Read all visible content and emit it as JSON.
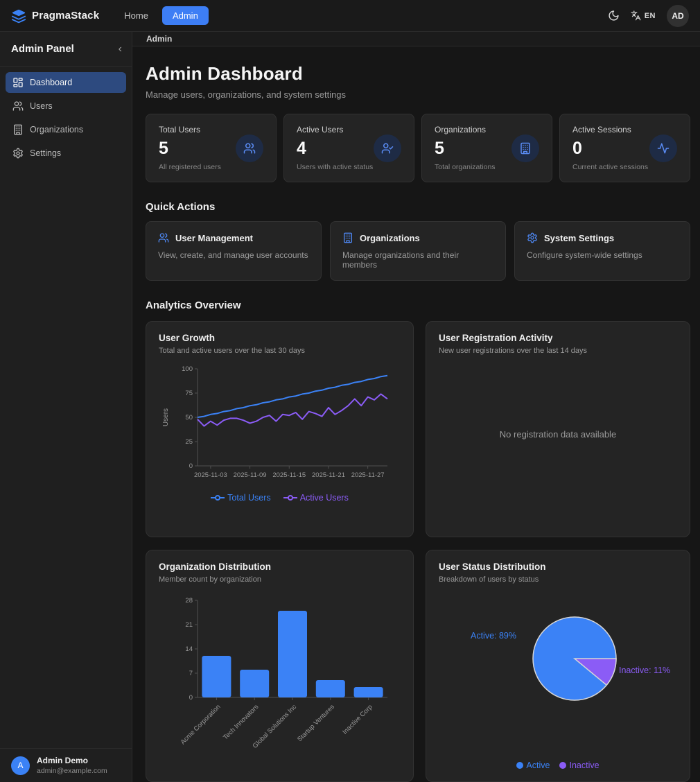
{
  "navbar": {
    "brand": "PragmaStack",
    "links": [
      {
        "label": "Home",
        "active": false
      },
      {
        "label": "Admin",
        "active": true
      }
    ],
    "language": "EN",
    "avatar": "AD"
  },
  "sidebar": {
    "title": "Admin Panel",
    "collapse_icon": "‹",
    "items": [
      {
        "label": "Dashboard",
        "icon": "dashboard-icon",
        "active": true
      },
      {
        "label": "Users",
        "icon": "users-icon",
        "active": false
      },
      {
        "label": "Organizations",
        "icon": "building-icon",
        "active": false
      },
      {
        "label": "Settings",
        "icon": "gear-icon",
        "active": false
      }
    ],
    "user": {
      "initial": "A",
      "name": "Admin Demo",
      "email": "admin@example.com"
    }
  },
  "breadcrumb": "Admin",
  "page": {
    "title": "Admin Dashboard",
    "subtitle": "Manage users, organizations, and system settings"
  },
  "stats": [
    {
      "label": "Total Users",
      "value": "5",
      "description": "All registered users",
      "icon": "users-icon"
    },
    {
      "label": "Active Users",
      "value": "4",
      "description": "Users with active status",
      "icon": "user-check-icon"
    },
    {
      "label": "Organizations",
      "value": "5",
      "description": "Total organizations",
      "icon": "building-icon"
    },
    {
      "label": "Active Sessions",
      "value": "0",
      "description": "Current active sessions",
      "icon": "activity-icon"
    }
  ],
  "quick_actions": {
    "heading": "Quick Actions",
    "items": [
      {
        "title": "User Management",
        "description": "View, create, and manage user accounts",
        "icon": "users-icon"
      },
      {
        "title": "Organizations",
        "description": "Manage organizations and their members",
        "icon": "building-icon"
      },
      {
        "title": "System Settings",
        "description": "Configure system-wide settings",
        "icon": "gear-icon"
      }
    ]
  },
  "analytics": {
    "heading": "Analytics Overview",
    "registration_card": {
      "title": "User Registration Activity",
      "subtitle": "New user registrations over the last 14 days",
      "no_data_message": "No registration data available"
    }
  },
  "colors": {
    "accent_blue": "#3b82f6",
    "accent_purple": "#8b5cf6",
    "axis_text": "#9b9b9b",
    "axis_line": "#4f4f4f",
    "pie_stroke": "#d6d6d6"
  },
  "chart_data": [
    {
      "type": "line",
      "title": "User Growth",
      "subtitle": "Total and active users over the last 30 days",
      "ylabel": "Users",
      "ylim": [
        0,
        100
      ],
      "yticks": [
        0,
        25,
        50,
        75,
        100
      ],
      "xtick_labels": [
        "2025-11-03",
        "2025-11-09",
        "2025-11-15",
        "2025-11-21",
        "2025-11-27"
      ],
      "xtick_indices": [
        2,
        8,
        14,
        20,
        26
      ],
      "legend_position": "bottom",
      "grid": false,
      "series": [
        {
          "name": "Total Users",
          "color": "#3b82f6",
          "values": [
            50,
            51,
            53,
            54,
            56,
            57,
            59,
            60,
            62,
            63,
            65,
            66,
            68,
            69,
            71,
            72,
            74,
            75,
            77,
            78,
            80,
            81,
            83,
            84,
            86,
            87,
            89,
            90,
            92,
            93
          ]
        },
        {
          "name": "Active Users",
          "color": "#8b5cf6",
          "values": [
            48,
            41,
            46,
            42,
            47,
            49,
            49,
            47,
            44,
            46,
            50,
            52,
            46,
            53,
            52,
            55,
            48,
            56,
            54,
            51,
            60,
            53,
            57,
            62,
            69,
            62,
            71,
            68,
            74,
            69
          ]
        }
      ]
    },
    {
      "type": "bar",
      "title": "Organization Distribution",
      "subtitle": "Member count by organization",
      "categories": [
        "Acme Corporation",
        "Tech Innovators",
        "Global Solutions Inc",
        "Startup Ventures",
        "Inactive Corp"
      ],
      "values": [
        12,
        8,
        25,
        5,
        3
      ],
      "ylim": [
        0,
        28
      ],
      "yticks": [
        0,
        7,
        14,
        21,
        28
      ],
      "bar_color": "#3b82f6",
      "grid": false
    },
    {
      "type": "pie",
      "title": "User Status Distribution",
      "subtitle": "Breakdown of users by status",
      "slices": [
        {
          "label": "Active",
          "percent": 89,
          "color": "#3b82f6"
        },
        {
          "label": "Inactive",
          "percent": 11,
          "color": "#8b5cf6"
        }
      ],
      "labels": [
        "Active: 89%",
        "Inactive: 11%"
      ],
      "legend": [
        "Active",
        "Inactive"
      ],
      "legend_position": "bottom"
    }
  ]
}
